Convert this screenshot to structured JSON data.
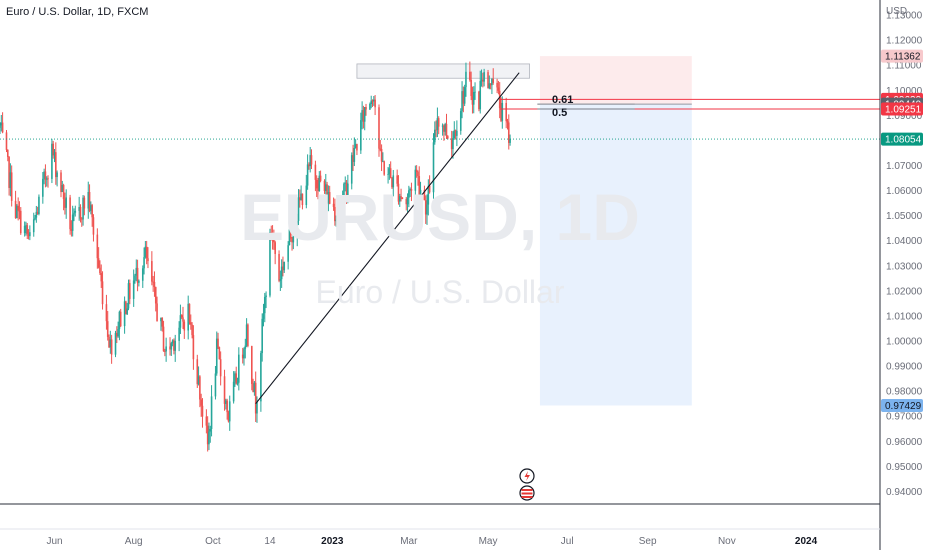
{
  "header": {
    "title": "Euro / U.S. Dollar, 1D, FXCM"
  },
  "watermark": {
    "symbol": "EURUSD, 1D",
    "name": "Euro / U.S. Dollar"
  },
  "axis": {
    "currency": "USD"
  },
  "colors": {
    "up": "#26a69a",
    "down": "#ef5350",
    "last": "#089981",
    "red_label": "#f23645",
    "gray_label": "#5d606b",
    "pink_label": "#f7c9cc",
    "blue_label": "#7cb3ee",
    "stop_zone": "#fdebec",
    "target_zone": "#e8f1fd"
  },
  "price_labels": [
    {
      "text": "1.11362",
      "price": 1.11362,
      "kind": "pink"
    },
    {
      "text": "1.09639",
      "price": 1.09639,
      "kind": "red"
    },
    {
      "text": "1.09449",
      "price": 1.09449,
      "kind": "gray"
    },
    {
      "text": "1.09251",
      "price": 1.09251,
      "kind": "red"
    },
    {
      "text": "1.08054",
      "price": 1.08054,
      "kind": "last"
    },
    {
      "text": "0.97429",
      "price": 0.97429,
      "kind": "blue"
    }
  ],
  "fib_labels": [
    {
      "text": "0.61",
      "price": 1.09449
    },
    {
      "text": "0.5",
      "price": 1.09251
    }
  ],
  "chart_data": {
    "type": "candlestick",
    "title": "Euro / U.S. Dollar, 1D, FXCM",
    "ylim": [
      0.935,
      1.136
    ],
    "y_ticks": [
      "1.13000",
      "1.12000",
      "1.11000",
      "1.10000",
      "1.09000",
      "1.08000",
      "1.07000",
      "1.06000",
      "1.05000",
      "1.04000",
      "1.03000",
      "1.02000",
      "1.01000",
      "1.00000",
      "0.99000",
      "0.98000",
      "0.97000",
      "0.96000",
      "0.95000",
      "0.94000"
    ],
    "x_ticks": [
      {
        "label": "Jun",
        "date": "2022-06-01",
        "bold": false
      },
      {
        "label": "Aug",
        "date": "2022-08-01",
        "bold": false
      },
      {
        "label": "Oct",
        "date": "2022-10-01",
        "bold": false
      },
      {
        "label": "14",
        "date": "2022-11-14",
        "bold": false
      },
      {
        "label": "2023",
        "date": "2023-01-01",
        "bold": true
      },
      {
        "label": "Mar",
        "date": "2023-03-01",
        "bold": false
      },
      {
        "label": "May",
        "date": "2023-05-01",
        "bold": false
      },
      {
        "label": "Jul",
        "date": "2023-07-01",
        "bold": false
      },
      {
        "label": "Sep",
        "date": "2023-09-01",
        "bold": false
      },
      {
        "label": "Nov",
        "date": "2023-11-01",
        "bold": false
      },
      {
        "label": "2024",
        "date": "2024-01-01",
        "bold": true
      }
    ],
    "price_path": [
      [
        "2022-04-20",
        1.085
      ],
      [
        "2022-05-02",
        1.052
      ],
      [
        "2022-05-13",
        1.04
      ],
      [
        "2022-05-30",
        1.076
      ],
      [
        "2022-06-14",
        1.045
      ],
      [
        "2022-06-27",
        1.058
      ],
      [
        "2022-07-14",
        0.998
      ],
      [
        "2022-08-01",
        1.024
      ],
      [
        "2022-08-10",
        1.034
      ],
      [
        "2022-08-26",
        0.995
      ],
      [
        "2022-09-12",
        1.012
      ],
      [
        "2022-09-27",
        0.958
      ],
      [
        "2022-10-04",
        0.996
      ],
      [
        "2022-10-13",
        0.97
      ],
      [
        "2022-10-27",
        1.005
      ],
      [
        "2022-11-03",
        0.975
      ],
      [
        "2022-11-15",
        1.045
      ],
      [
        "2022-11-21",
        1.025
      ],
      [
        "2022-12-15",
        1.07
      ],
      [
        "2023-01-06",
        1.05
      ],
      [
        "2023-01-26",
        1.092
      ],
      [
        "2023-02-02",
        1.1
      ],
      [
        "2023-02-07",
        1.072
      ],
      [
        "2023-02-27",
        1.055
      ],
      [
        "2023-03-06",
        1.068
      ],
      [
        "2023-03-15",
        1.053
      ],
      [
        "2023-03-23",
        1.09
      ],
      [
        "2023-04-03",
        1.08
      ],
      [
        "2023-04-14",
        1.103
      ],
      [
        "2023-04-24",
        1.095
      ],
      [
        "2023-04-26",
        1.108
      ],
      [
        "2023-05-02",
        1.1
      ],
      [
        "2023-05-04",
        1.108
      ],
      [
        "2023-05-11",
        1.092
      ],
      [
        "2023-05-18",
        1.0805
      ]
    ],
    "last_price": 1.08054,
    "annotations": {
      "trendline": [
        [
          "2022-11-03",
          0.975
        ],
        [
          "2023-05-25",
          1.107
        ]
      ],
      "resistance_box": {
        "x": [
          "2023-01-20",
          "2023-06-02"
        ],
        "y": [
          1.1048,
          1.1105
        ]
      },
      "fib_lines": [
        {
          "label": "0.61",
          "price": 1.09449,
          "x": [
            "2023-06-08",
            "2023-08-22"
          ]
        },
        {
          "label": "0.5",
          "price": 1.09251,
          "x": [
            "2023-06-08",
            "2023-08-22"
          ]
        }
      ],
      "horizontal_lines": [
        {
          "price": 1.09639,
          "x_from": "2023-05-10"
        },
        {
          "price": 1.09251,
          "x_from": "2023-05-10"
        }
      ],
      "short_position": {
        "x": [
          "2023-06-10",
          "2023-10-05"
        ],
        "entry": 1.09449,
        "stop": 1.11362,
        "target": 0.97429
      }
    }
  }
}
